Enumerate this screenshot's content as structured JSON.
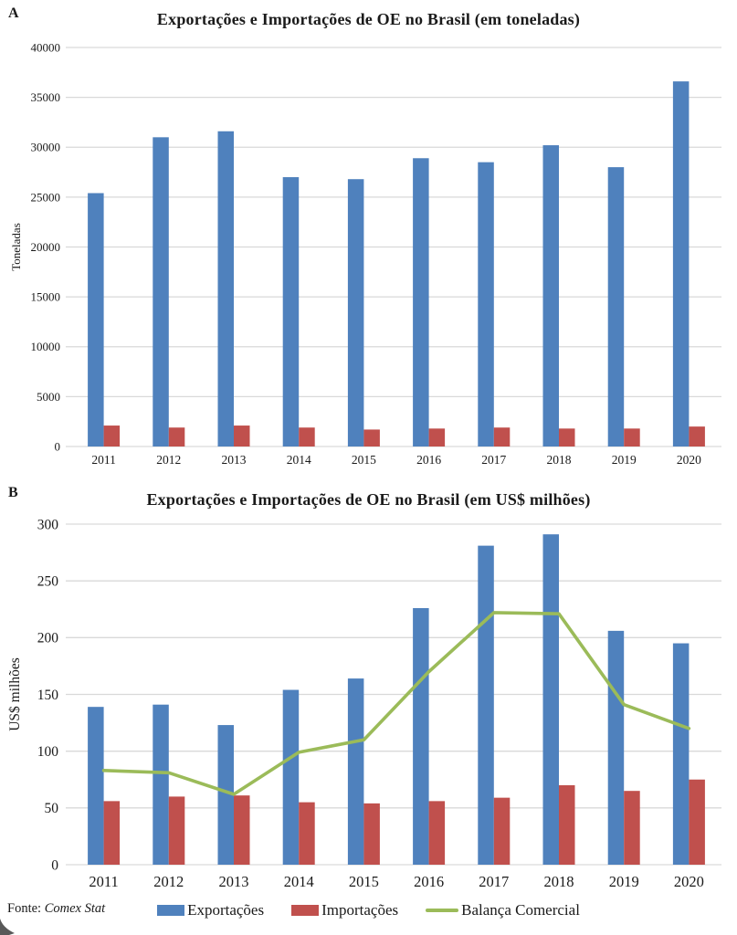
{
  "footer": {
    "source_prefix": "Fonte:",
    "source_name": "Comex Stat"
  },
  "legend": [
    {
      "label": "Exportações",
      "color": "#4F81BD",
      "kind": "bar"
    },
    {
      "label": "Importações",
      "color": "#C0504D",
      "kind": "bar"
    },
    {
      "label": "Balança Comercial",
      "color": "#9BBB59",
      "kind": "line"
    }
  ],
  "colors": {
    "exportacoes_blue": "#4F81BD",
    "importacoes_red": "#C0504D",
    "balanca_green": "#9BBB59",
    "gridline_grey": "#d9d9d9",
    "text_dark": "#1a1a1a"
  },
  "chart_data": [
    {
      "type": "bar",
      "panel_label": "A",
      "title": "Exportações e Importações de OE no Brasil (em toneladas)",
      "xlabel": "",
      "ylabel": "Toneladas",
      "ylim": [
        0,
        40000
      ],
      "ytick_step": 5000,
      "grid": true,
      "categories": [
        "2011",
        "2012",
        "2013",
        "2014",
        "2015",
        "2016",
        "2017",
        "2018",
        "2019",
        "2020"
      ],
      "series": [
        {
          "name": "Exportações",
          "color": "#4F81BD",
          "values": [
            25400,
            31000,
            31600,
            27000,
            26800,
            28900,
            28500,
            30200,
            28000,
            36600
          ]
        },
        {
          "name": "Importações",
          "color": "#C0504D",
          "values": [
            2100,
            1900,
            2100,
            1900,
            1700,
            1800,
            1900,
            1800,
            1800,
            2000
          ]
        }
      ]
    },
    {
      "type": "bar+line",
      "panel_label": "B",
      "title": "Exportações e Importações de OE no Brasil (em US$ milhões)",
      "xlabel": "",
      "ylabel": "US$ milhões",
      "ylim": [
        0,
        300
      ],
      "ytick_step": 50,
      "grid": true,
      "categories": [
        "2011",
        "2012",
        "2013",
        "2014",
        "2015",
        "2016",
        "2017",
        "2018",
        "2019",
        "2020"
      ],
      "series": [
        {
          "name": "Exportações",
          "color": "#4F81BD",
          "values": [
            139,
            141,
            123,
            154,
            164,
            226,
            281,
            291,
            206,
            195
          ]
        },
        {
          "name": "Importações",
          "color": "#C0504D",
          "values": [
            56,
            60,
            61,
            55,
            54,
            56,
            59,
            70,
            65,
            75
          ]
        }
      ],
      "line_series": {
        "name": "Balança Comercial",
        "color": "#9BBB59",
        "values": [
          83,
          81,
          62,
          99,
          110,
          170,
          222,
          221,
          141,
          120
        ]
      }
    }
  ]
}
